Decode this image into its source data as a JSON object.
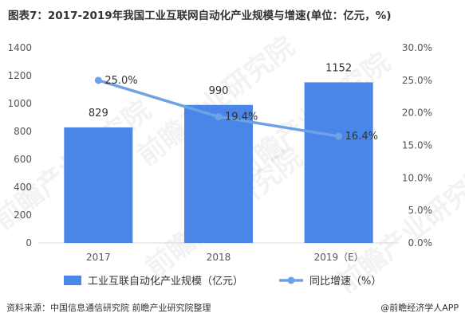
{
  "title": "图表7：2017-2019年我国工业互联网自动化产业规模与增速(单位：亿元，%)",
  "source": "资料来源：中国信息通信研究院 前瞻产业研究院整理",
  "brand": "@前瞻经济学人APP",
  "watermark": "前瞻产业研究院",
  "colors": {
    "bar": "#4a86e8",
    "line": "#6fa1e6",
    "axis_text": "#555555",
    "value_text": "#333333"
  },
  "chart_data": {
    "type": "bar",
    "categories": [
      "2017",
      "2018",
      "2019（E）"
    ],
    "series": [
      {
        "name": "工业互联自动化产业规模（亿元）",
        "type": "bar",
        "axis": "left",
        "values": [
          829,
          990,
          1152
        ],
        "labels": [
          "829",
          "990",
          "1152"
        ]
      },
      {
        "name": "同比增速（%）",
        "type": "line",
        "axis": "right",
        "values": [
          25.0,
          19.4,
          16.4
        ],
        "labels": [
          "25.0%",
          "19.4%",
          "16.4%"
        ]
      }
    ],
    "y_left": {
      "range": [
        0,
        1400
      ],
      "ticks": [
        "0",
        "200",
        "400",
        "600",
        "800",
        "1000",
        "1200",
        "1400"
      ]
    },
    "y_right": {
      "range": [
        0,
        30
      ],
      "ticks": [
        "0.0%",
        "5.0%",
        "10.0%",
        "15.0%",
        "20.0%",
        "25.0%",
        "30.0%"
      ]
    },
    "grid": false,
    "legend_position": "bottom"
  }
}
